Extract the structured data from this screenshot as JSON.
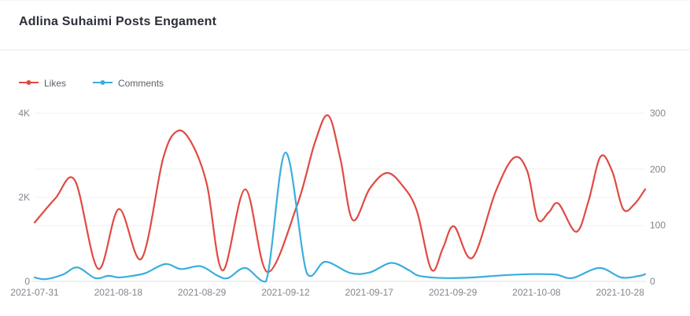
{
  "header": {
    "title": "Adlina Suhaimi Posts Engament"
  },
  "chart_data": {
    "type": "line",
    "title": "Adlina Suhaimi Posts Engament",
    "smooth": true,
    "grid": true,
    "legend_position": "top-left",
    "x_tick_labels": [
      "2021-07-31",
      "2021-08-18",
      "2021-08-29",
      "2021-09-12",
      "2021-09-17",
      "2021-09-29",
      "2021-10-08",
      "2021-10-28"
    ],
    "x_tick_positions_pct": [
      0,
      13.7,
      27.4,
      41.1,
      54.8,
      68.5,
      82.2,
      95.9
    ],
    "left_axis": {
      "title": "Likes",
      "tick_labels": [
        "0",
        "2K",
        "4K"
      ],
      "min": 0,
      "max": 4000,
      "interval": 2000
    },
    "right_axis": {
      "title": "Comments",
      "tick_labels": [
        "0",
        "100",
        "200",
        "300"
      ],
      "min": 0,
      "max": 300,
      "interval": 100
    },
    "colors": {
      "likes": "#e04a42",
      "comments": "#3aaede",
      "gridline": "#f2f2f2",
      "axis_line": "#e2e2e2",
      "tick_text": "#81868e"
    },
    "series": [
      {
        "name": "Likes",
        "axis": "left",
        "color": "#e04a42",
        "points_pct_value": [
          [
            0,
            1400
          ],
          [
            3.4,
            1975
          ],
          [
            6.6,
            2400
          ],
          [
            10.4,
            300
          ],
          [
            13.8,
            1720
          ],
          [
            17.5,
            540
          ],
          [
            21.0,
            2900
          ],
          [
            23.3,
            3570
          ],
          [
            25.6,
            3320
          ],
          [
            28.2,
            2320
          ],
          [
            30.8,
            260
          ],
          [
            34.5,
            2190
          ],
          [
            38.1,
            225
          ],
          [
            43.0,
            1815
          ],
          [
            45.9,
            3300
          ],
          [
            48.1,
            3944
          ],
          [
            50.1,
            2900
          ],
          [
            52.1,
            1460
          ],
          [
            54.9,
            2210
          ],
          [
            57.7,
            2580
          ],
          [
            60.3,
            2270
          ],
          [
            62.6,
            1680
          ],
          [
            65.0,
            280
          ],
          [
            66.9,
            800
          ],
          [
            68.7,
            1310
          ],
          [
            71.7,
            560
          ],
          [
            75.5,
            2130
          ],
          [
            78.5,
            2940
          ],
          [
            80.7,
            2620
          ],
          [
            82.4,
            1480
          ],
          [
            84.2,
            1640
          ],
          [
            85.8,
            1850
          ],
          [
            88.7,
            1180
          ],
          [
            90.7,
            1900
          ],
          [
            92.7,
            2970
          ],
          [
            94.6,
            2620
          ],
          [
            96.4,
            1720
          ],
          [
            98.2,
            1830
          ],
          [
            100,
            2190
          ]
        ]
      },
      {
        "name": "Comments",
        "axis": "right",
        "color": "#3aaede",
        "points_pct_value": [
          [
            0,
            7
          ],
          [
            1.8,
            4
          ],
          [
            4.6,
            12
          ],
          [
            7.0,
            25
          ],
          [
            9.9,
            6
          ],
          [
            12.1,
            10
          ],
          [
            13.8,
            7
          ],
          [
            16.0,
            10
          ],
          [
            18.2,
            15
          ],
          [
            21.4,
            31
          ],
          [
            24.0,
            22
          ],
          [
            27.2,
            27
          ],
          [
            30.0,
            10
          ],
          [
            31.7,
            6
          ],
          [
            34.5,
            24
          ],
          [
            37.9,
            0
          ],
          [
            41.1,
            230
          ],
          [
            44.6,
            14
          ],
          [
            47.6,
            35
          ],
          [
            51.7,
            15
          ],
          [
            54.9,
            16
          ],
          [
            58.4,
            33
          ],
          [
            61.3,
            20
          ],
          [
            63.0,
            10
          ],
          [
            67.1,
            6
          ],
          [
            71.6,
            7
          ],
          [
            76.8,
            11
          ],
          [
            81.9,
            13
          ],
          [
            85.4,
            12
          ],
          [
            88.1,
            6
          ],
          [
            92.5,
            24
          ],
          [
            96.1,
            7
          ],
          [
            99.1,
            10
          ],
          [
            100,
            13
          ]
        ]
      }
    ]
  }
}
